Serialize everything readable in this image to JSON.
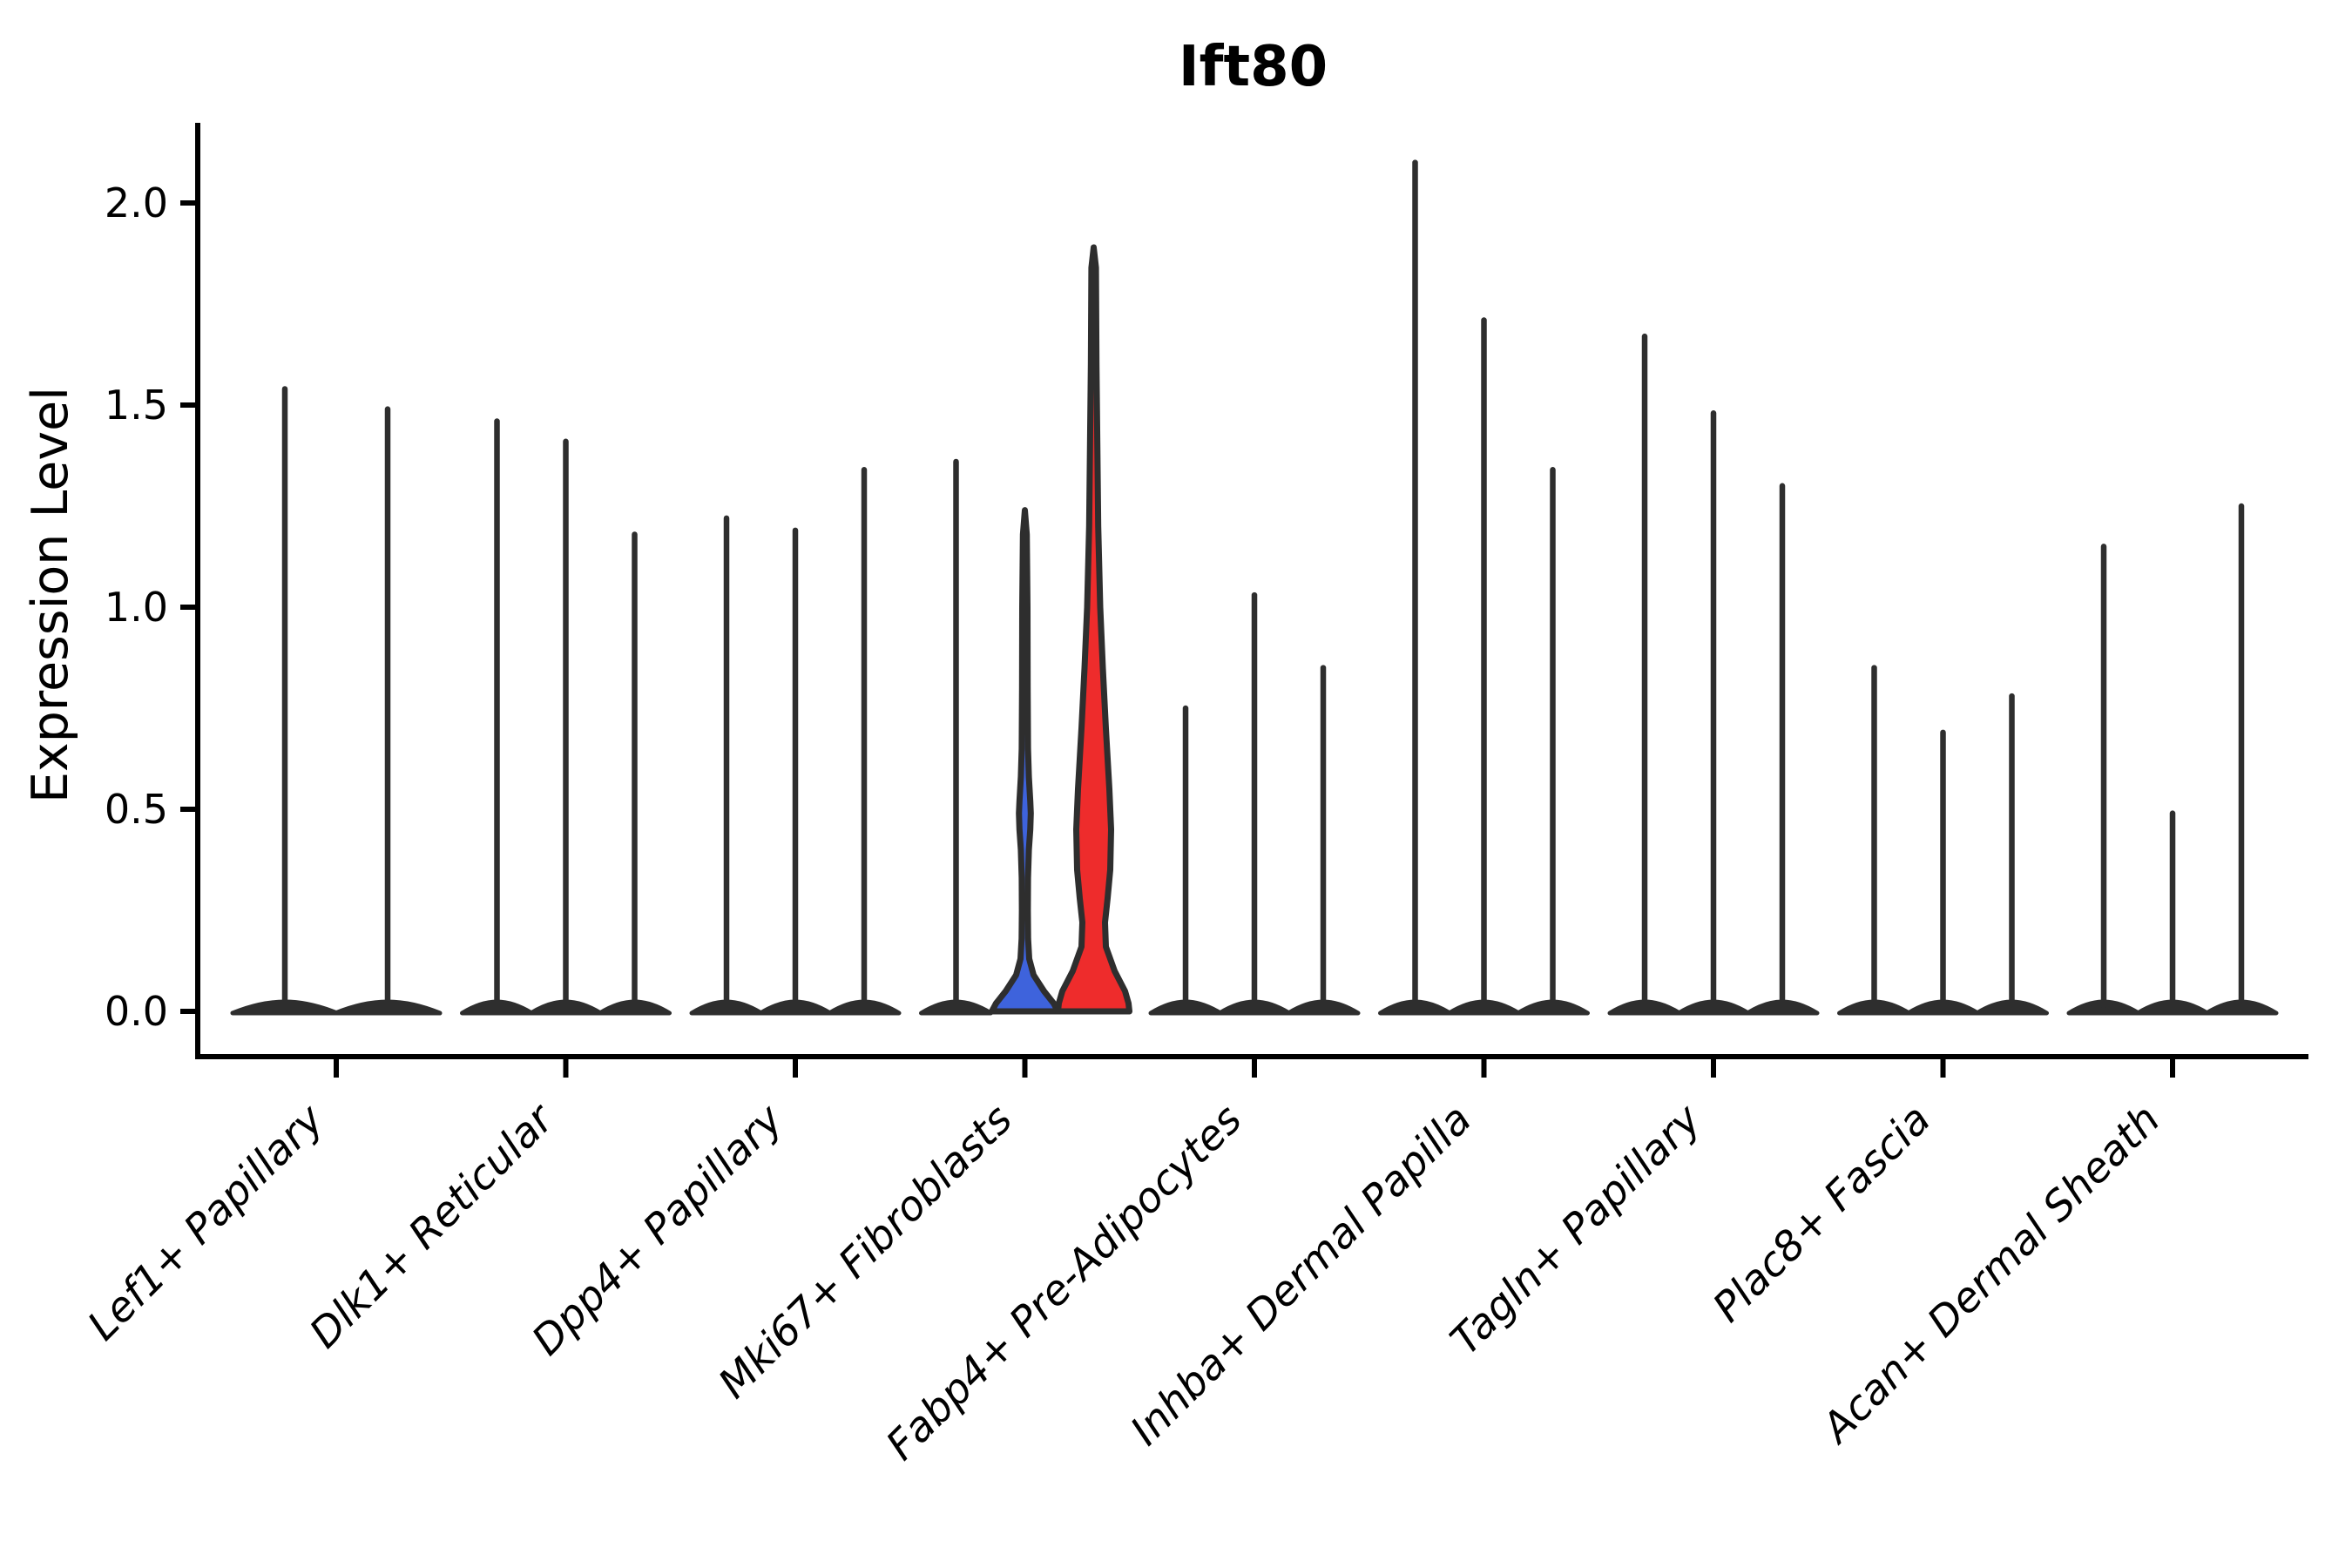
{
  "chart_data": {
    "type": "violin",
    "title": "Ift80",
    "ylabel": "Expression Level",
    "xlabel": "",
    "grid": false,
    "legend_position": "none",
    "ylim": [
      -0.11,
      2.22
    ],
    "yticks": [
      0.0,
      0.5,
      1.0,
      1.5,
      2.0
    ],
    "ytick_labels": [
      "0.0",
      "0.5",
      "1.0",
      "1.5",
      "2.0"
    ],
    "categories": [
      "Lef1+ Papillary",
      "Dlk1+ Reticular",
      "Dpp4+ Papillary",
      "Mki67+ Fibroblasts",
      "Fabp4+ Pre-Adipocytes",
      "Inhba+ Dermal Papilla",
      "Tagln+ Papillary",
      "Plac8+ Fascia",
      "Acan+ Dermal Sheath"
    ],
    "groups": [
      {
        "category": "Lef1+ Papillary",
        "violins": [
          {
            "max": 1.54
          },
          {
            "max": 1.49
          }
        ],
        "wide": true
      },
      {
        "category": "Dlk1+ Reticular",
        "violins": [
          {
            "max": 1.46
          },
          {
            "max": 1.41
          },
          {
            "max": 1.18
          }
        ]
      },
      {
        "category": "Dpp4+ Papillary",
        "violins": [
          {
            "max": 1.22
          },
          {
            "max": 1.19
          },
          {
            "max": 1.34
          }
        ]
      },
      {
        "category": "Mki67+ Fibroblasts",
        "violins": [
          {
            "max": 1.36
          },
          {
            "max": 1.24,
            "fill": "blue"
          },
          {
            "max": 1.89,
            "fill": "red"
          }
        ]
      },
      {
        "category": "Fabp4+ Pre-Adipocytes",
        "violins": [
          {
            "max": 0.75
          },
          {
            "max": 1.03
          },
          {
            "max": 0.85
          }
        ]
      },
      {
        "category": "Inhba+ Dermal Papilla",
        "violins": [
          {
            "max": 2.1
          },
          {
            "max": 1.71
          },
          {
            "max": 1.34
          }
        ]
      },
      {
        "category": "Tagln+ Papillary",
        "violins": [
          {
            "max": 1.67
          },
          {
            "max": 1.48
          },
          {
            "max": 1.3
          }
        ]
      },
      {
        "category": "Plac8+ Fascia",
        "violins": [
          {
            "max": 0.85
          },
          {
            "max": 0.69
          },
          {
            "max": 0.78
          }
        ]
      },
      {
        "category": "Acan+ Dermal Sheath",
        "violins": [
          {
            "max": 1.15
          },
          {
            "max": 0.49
          },
          {
            "max": 1.25
          }
        ]
      }
    ],
    "density_profiles": {
      "blue": [
        [
          1.24,
          0
        ],
        [
          1.18,
          2.2
        ],
        [
          1.0,
          3.0
        ],
        [
          0.8,
          3.2
        ],
        [
          0.65,
          3.6
        ],
        [
          0.58,
          4.6
        ],
        [
          0.52,
          6.2
        ],
        [
          0.49,
          6.8
        ],
        [
          0.45,
          6.2
        ],
        [
          0.4,
          4.6
        ],
        [
          0.33,
          3.6
        ],
        [
          0.25,
          3.4
        ],
        [
          0.18,
          3.7
        ],
        [
          0.13,
          5.0
        ],
        [
          0.09,
          10
        ],
        [
          0.05,
          22
        ],
        [
          0.02,
          33
        ],
        [
          0.0,
          38
        ]
      ],
      "red": [
        [
          1.89,
          0
        ],
        [
          1.84,
          2.6
        ],
        [
          1.6,
          3.2
        ],
        [
          1.4,
          4.2
        ],
        [
          1.2,
          5.2
        ],
        [
          1.0,
          7.5
        ],
        [
          0.85,
          10.5
        ],
        [
          0.7,
          14
        ],
        [
          0.55,
          18
        ],
        [
          0.45,
          20
        ],
        [
          0.35,
          19
        ],
        [
          0.28,
          16
        ],
        [
          0.22,
          13
        ],
        [
          0.16,
          14
        ],
        [
          0.1,
          24
        ],
        [
          0.05,
          36
        ],
        [
          0.02,
          40
        ],
        [
          0.0,
          41
        ]
      ]
    }
  },
  "colors": {
    "background": "#ffffff",
    "axis": "#000000",
    "violin_stroke": "#2e2e2e",
    "violin_dark_fill": "#2e2e2e",
    "highlight_blue": "#3e63dc",
    "highlight_red": "#ee2c2c"
  }
}
